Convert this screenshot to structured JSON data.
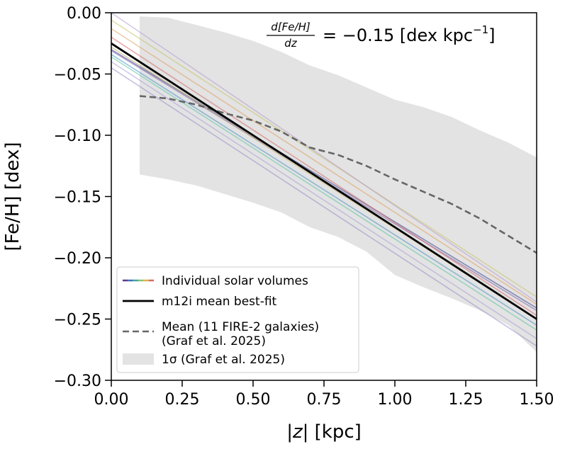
{
  "chart_data": {
    "type": "line",
    "xlabel_prefix": "|",
    "xlabel_var": "z",
    "xlabel_suffix": "| [kpc]",
    "ylabel": "[Fe/H] [dex]",
    "xlim": [
      0.0,
      1.5
    ],
    "ylim": [
      -0.3,
      0.0
    ],
    "x_ticks": [
      "0.00",
      "0.25",
      "0.50",
      "0.75",
      "1.00",
      "1.25",
      "1.50"
    ],
    "y_ticks": [
      "0.00",
      "−0.05",
      "−0.10",
      "−0.15",
      "−0.20",
      "−0.25",
      "−0.30"
    ],
    "x_tick_values": [
      0.0,
      0.25,
      0.5,
      0.75,
      1.0,
      1.25,
      1.5
    ],
    "y_tick_values": [
      0.0,
      -0.05,
      -0.1,
      -0.15,
      -0.2,
      -0.25,
      -0.3
    ],
    "annotation": {
      "numerator": "d[Fe/H]",
      "denominator": "dz",
      "value_text": "= −0.15 [dex kpc",
      "exponent": "−1",
      "close": "]"
    },
    "series": [
      {
        "name": "Individual solar volumes",
        "kind": "individual",
        "color": "#7b5ea7",
        "values_at_x": [
          [
            0.0,
            -0.031
          ],
          [
            1.5,
            -0.243
          ]
        ]
      },
      {
        "name": "Individual solar volumes",
        "kind": "individual",
        "color": "#3b3f8c",
        "values_at_x": [
          [
            0.0,
            -0.03
          ],
          [
            1.5,
            -0.241
          ]
        ]
      },
      {
        "name": "Individual solar volumes",
        "kind": "individual",
        "color": "#4a8fc7",
        "values_at_x": [
          [
            0.0,
            -0.034
          ],
          [
            1.5,
            -0.255
          ]
        ]
      },
      {
        "name": "Individual solar volumes",
        "kind": "individual",
        "color": "#5cc4a8",
        "values_at_x": [
          [
            0.0,
            -0.036
          ],
          [
            1.5,
            -0.259
          ]
        ]
      },
      {
        "name": "Individual solar volumes",
        "kind": "individual",
        "color": "#c7c46a",
        "values_at_x": [
          [
            0.0,
            -0.006
          ],
          [
            1.5,
            -0.232
          ]
        ]
      },
      {
        "name": "Individual solar volumes",
        "kind": "individual",
        "color": "#e0a060",
        "values_at_x": [
          [
            0.0,
            -0.013
          ],
          [
            1.5,
            -0.238
          ]
        ]
      },
      {
        "name": "Individual solar volumes",
        "kind": "individual",
        "color": "#d66a6a",
        "values_at_x": [
          [
            0.0,
            -0.02
          ],
          [
            1.5,
            -0.247
          ]
        ]
      },
      {
        "name": "Individual solar volumes",
        "kind": "individual",
        "color": "#b89ad0",
        "values_at_x": [
          [
            0.0,
            0.0
          ],
          [
            1.5,
            -0.236
          ]
        ]
      },
      {
        "name": "Individual solar volumes",
        "kind": "individual",
        "color": "#9a8cc8",
        "values_at_x": [
          [
            0.0,
            -0.045
          ],
          [
            1.5,
            -0.272
          ]
        ]
      },
      {
        "name": "Individual solar volumes",
        "kind": "individual",
        "color": "#a8a0d8",
        "values_at_x": [
          [
            0.0,
            -0.04
          ],
          [
            1.5,
            -0.266
          ]
        ]
      },
      {
        "name": "Individual solar volumes",
        "kind": "individual",
        "color": "#c0b070",
        "values_at_x": [
          [
            0.0,
            -0.028
          ],
          [
            1.5,
            -0.25
          ]
        ]
      },
      {
        "name": "m12i mean best-fit",
        "kind": "bestfit",
        "color": "#000000",
        "values_at_x": [
          [
            0.0,
            -0.025
          ],
          [
            1.5,
            -0.25
          ]
        ]
      },
      {
        "name": "Mean (11 FIRE-2 galaxies)\n (Graf et al. 2025)",
        "kind": "mean",
        "color": "#666666",
        "values_at_x": [
          [
            0.1,
            -0.068
          ],
          [
            0.2,
            -0.07
          ],
          [
            0.3,
            -0.075
          ],
          [
            0.4,
            -0.082
          ],
          [
            0.5,
            -0.088
          ],
          [
            0.6,
            -0.097
          ],
          [
            0.7,
            -0.11
          ],
          [
            0.8,
            -0.116
          ],
          [
            0.9,
            -0.125
          ],
          [
            1.0,
            -0.136
          ],
          [
            1.1,
            -0.146
          ],
          [
            1.2,
            -0.156
          ],
          [
            1.3,
            -0.168
          ],
          [
            1.4,
            -0.182
          ],
          [
            1.5,
            -0.196
          ]
        ]
      }
    ],
    "band": {
      "name": "1σ (Graf et al. 2025)",
      "color": "#e3e3e3",
      "x": [
        0.1,
        0.2,
        0.3,
        0.4,
        0.5,
        0.6,
        0.7,
        0.8,
        0.9,
        1.0,
        1.1,
        1.2,
        1.3,
        1.4,
        1.5
      ],
      "upper": [
        -0.003,
        -0.004,
        -0.01,
        -0.016,
        -0.023,
        -0.032,
        -0.043,
        -0.051,
        -0.061,
        -0.071,
        -0.077,
        -0.085,
        -0.096,
        -0.106,
        -0.118
      ],
      "lower": [
        -0.132,
        -0.136,
        -0.141,
        -0.148,
        -0.155,
        -0.163,
        -0.175,
        -0.183,
        -0.195,
        -0.214,
        -0.224,
        -0.233,
        -0.243,
        -0.255,
        -0.277
      ]
    },
    "legend": {
      "position": "lower-left",
      "entries": [
        {
          "label": "Individual solar volumes",
          "kind": "rainbow"
        },
        {
          "label": "m12i mean best-fit",
          "kind": "line"
        },
        {
          "label": "Mean (11 FIRE-2 galaxies)",
          "label2": " (Graf et al. 2025)",
          "kind": "dashed"
        },
        {
          "label": "1σ (Graf et al. 2025)",
          "kind": "patch"
        }
      ]
    }
  }
}
